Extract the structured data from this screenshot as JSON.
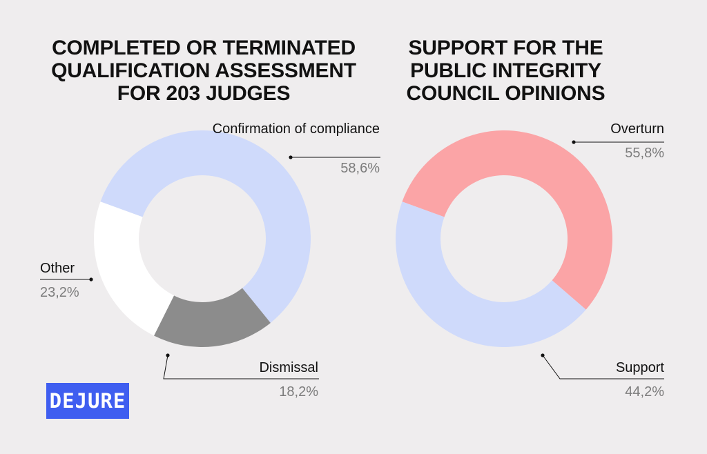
{
  "colors": {
    "background": "#efedee",
    "light_blue": "#cfdafb",
    "white": "#ffffff",
    "gray": "#8c8c8c",
    "pink": "#fba4a6",
    "logo_blue": "#3f5ef0"
  },
  "logo": {
    "text": "DEJURE"
  },
  "chart_data": [
    {
      "type": "pie",
      "title": "COMPLETED OR TERMINATED QUALIFICATION ASSESSMENT FOR 203 JUDGES",
      "slices": [
        {
          "label": "Confirmation of compliance",
          "value": 58.6,
          "value_text": "58,6%",
          "color": "#cfdafb"
        },
        {
          "label": "Dismissal",
          "value": 18.2,
          "value_text": "18,2%",
          "color": "#8c8c8c"
        },
        {
          "label": "Other",
          "value": 23.2,
          "value_text": "23,2%",
          "color": "#ffffff"
        }
      ]
    },
    {
      "type": "pie",
      "title": "SUPPORT FOR THE PUBLIC INTEGRITY COUNCIL OPINIONS",
      "slices": [
        {
          "label": "Overturn",
          "value": 55.8,
          "value_text": "55,8%",
          "color": "#fba4a6"
        },
        {
          "label": "Support",
          "value": 44.2,
          "value_text": "44,2%",
          "color": "#cfdafb"
        }
      ]
    }
  ]
}
